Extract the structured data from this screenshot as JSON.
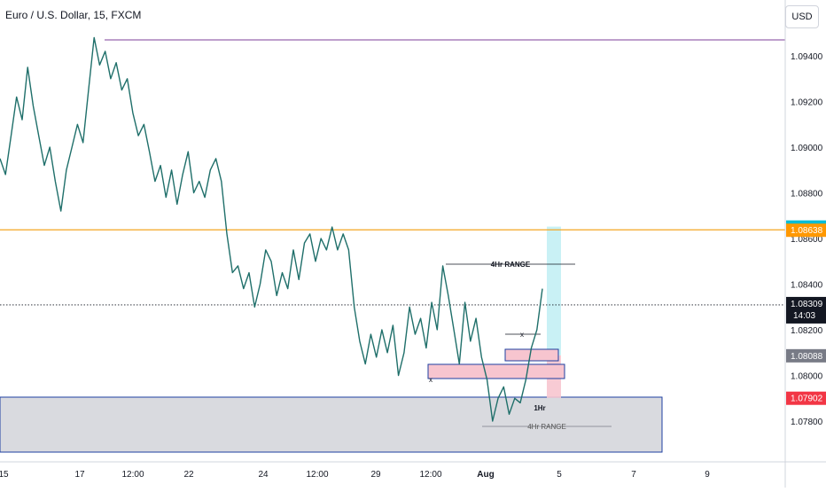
{
  "header": {
    "title": "Euro / U.S. Dollar, 15, FXCM",
    "currency": "USD"
  },
  "chart_data": {
    "type": "line",
    "title": "Euro / U.S. Dollar, 15, FXCM",
    "xlabel": "",
    "ylabel": "",
    "x_tick_labels": [
      "15",
      "17",
      "12:00",
      "22",
      "24",
      "12:00",
      "29",
      "12:00",
      "Aug",
      "5",
      "7",
      "9"
    ],
    "y_tick_labels": [
      "1.09400",
      "1.09200",
      "1.09000",
      "1.08800",
      "1.08600",
      "1.08400",
      "1.08200",
      "1.08000",
      "1.07800"
    ],
    "ylim": [
      1.0762,
      1.0972
    ],
    "grid": false,
    "series": [
      {
        "values": [
          1.0895,
          1.0888,
          1.0905,
          1.0922,
          1.0912,
          1.0935,
          1.0918,
          1.0905,
          1.0892,
          1.09,
          1.0885,
          1.0872,
          1.089,
          1.09,
          1.091,
          1.0902,
          1.0925,
          1.0948,
          1.0936,
          1.0942,
          1.093,
          1.0937,
          1.0925,
          1.093,
          1.0915,
          1.0905,
          1.091,
          1.0898,
          1.0885,
          1.0892,
          1.0878,
          1.089,
          1.0875,
          1.0888,
          1.0898,
          1.088,
          1.0885,
          1.0878,
          1.089,
          1.0895,
          1.0885,
          1.0862,
          1.0845,
          1.0848,
          1.0838,
          1.0845,
          1.083,
          1.084,
          1.0855,
          1.085,
          1.0835,
          1.0845,
          1.0838,
          1.0855,
          1.0842,
          1.0858,
          1.0862,
          1.085,
          1.086,
          1.0855,
          1.0865,
          1.0855,
          1.0862,
          1.0855,
          1.083,
          1.0815,
          1.0805,
          1.0818,
          1.0808,
          1.082,
          1.081,
          1.0822,
          1.08,
          1.081,
          1.083,
          1.0818,
          1.0825,
          1.0812,
          1.0832,
          1.082,
          1.0848,
          1.0835,
          1.082,
          1.0805,
          1.0832,
          1.0815,
          1.0825,
          1.0808,
          1.0798,
          1.078,
          1.079,
          1.0795,
          1.0783,
          1.079,
          1.0788,
          1.0798,
          1.0812,
          1.082,
          1.0838
        ]
      }
    ],
    "last_price": "1.08309",
    "countdown": "14:03",
    "price_labels": [
      {
        "value": 1.08652,
        "text": "1.08652",
        "color": "#00bcd4"
      },
      {
        "value": 1.08638,
        "text": "1.08638",
        "color": "#ff9800"
      },
      {
        "value": 1.08309,
        "text": "1.08309",
        "color": "#131722"
      },
      {
        "value": 1.08088,
        "text": "1.08088",
        "color": "#787b86"
      },
      {
        "value": 1.07902,
        "text": "1.07902",
        "color": "#f23645"
      }
    ],
    "levels": {
      "purple_line": 1.0947,
      "orange_line": 1.08638,
      "dotted_line": 1.08309
    },
    "annotations": [
      "4Hr RANGE",
      "1Hr",
      "4Hr RANGE",
      "x",
      "x"
    ],
    "colors": {
      "price": "#1f6f6a",
      "purple": "#7e3f98",
      "orange": "#f5a623",
      "zone_fill": "#d9dadf",
      "zone_border": "#1e3fa0",
      "pink": "#f7c5cf",
      "teal": "#bfeef3"
    }
  }
}
